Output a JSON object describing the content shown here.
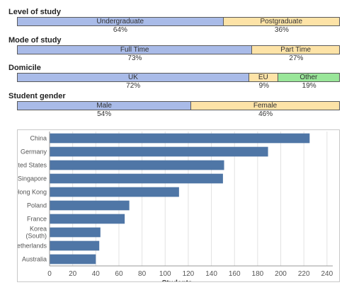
{
  "sections": [
    {
      "title": "Level of study",
      "segments": [
        {
          "label": "Undergraduate",
          "pct": "64%",
          "value": 64,
          "color": "#a9bbe8"
        },
        {
          "label": "Postgraduate",
          "pct": "36%",
          "value": 36,
          "color": "#fde3a7"
        }
      ]
    },
    {
      "title": "Mode of study",
      "segments": [
        {
          "label": "Full Time",
          "pct": "73%",
          "value": 73,
          "color": "#a9bbe8"
        },
        {
          "label": "Part Time",
          "pct": "27%",
          "value": 27,
          "color": "#fde3a7"
        }
      ]
    },
    {
      "title": "Domicile",
      "segments": [
        {
          "label": "UK",
          "pct": "72%",
          "value": 72,
          "color": "#a9bbe8"
        },
        {
          "label": "EU",
          "pct": "9%",
          "value": 9,
          "color": "#fde3a7"
        },
        {
          "label": "Other",
          "pct": "19%",
          "value": 19,
          "color": "#99e699"
        }
      ]
    },
    {
      "title": "Student gender",
      "segments": [
        {
          "label": "Male",
          "pct": "54%",
          "value": 54,
          "color": "#a9bbe8"
        },
        {
          "label": "Female",
          "pct": "46%",
          "value": 46,
          "color": "#fde3a7"
        }
      ]
    }
  ],
  "chart_data": {
    "type": "bar",
    "orientation": "horizontal",
    "categories": [
      "China",
      "Germany",
      "United States",
      "Singapore",
      "Hong Kong",
      "Poland",
      "France",
      "Korea (South)",
      "Netherlands",
      "Australia"
    ],
    "category_lines": [
      [
        "China"
      ],
      [
        "Germany"
      ],
      [
        "United States"
      ],
      [
        "Singapore"
      ],
      [
        "Hong Kong"
      ],
      [
        "Poland"
      ],
      [
        "France"
      ],
      [
        "Korea",
        "(South)"
      ],
      [
        "Netherlands"
      ],
      [
        "Australia"
      ]
    ],
    "values": [
      225,
      189,
      151,
      150,
      112,
      69,
      65,
      44,
      43,
      40
    ],
    "xlabel": "Students",
    "xlim": [
      0,
      245
    ],
    "xticks": [
      0,
      20,
      40,
      60,
      80,
      100,
      120,
      140,
      160,
      180,
      200,
      220,
      240
    ],
    "grid": true,
    "bar_color": "#4f76a6"
  }
}
